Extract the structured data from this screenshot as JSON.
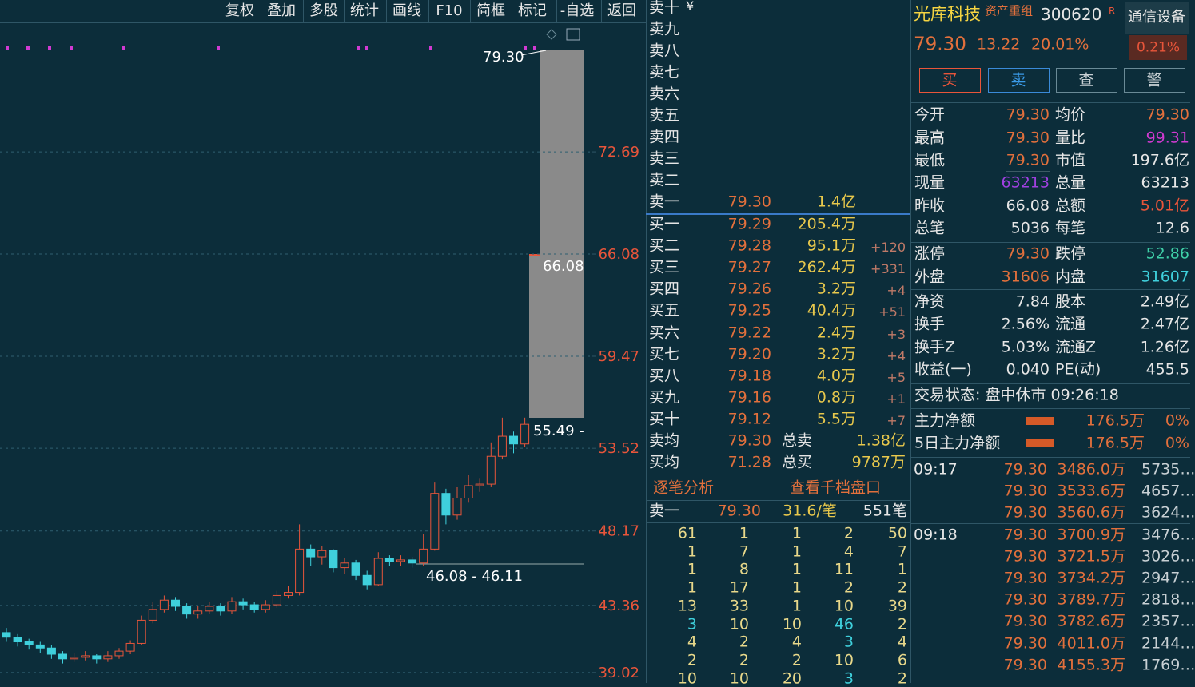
{
  "toolbar": [
    "复权",
    "叠加",
    "多股",
    "统计",
    "画线",
    "F10",
    "简框",
    "标记",
    "-自选",
    "返回"
  ],
  "chart": {
    "ylim": [
      38.34,
      80.96
    ],
    "yticks": [
      72.69,
      66.08,
      59.47,
      53.52,
      48.17,
      43.36,
      39.02
    ],
    "annotations": {
      "limit": "79.30",
      "prev_close": "66.08",
      "level_high": "55.49 -",
      "level_low": "46.08 - 46.11"
    },
    "candles": [
      [
        41.6,
        41.3,
        41.9,
        41.0
      ],
      [
        41.3,
        41.0,
        41.5,
        40.7
      ],
      [
        41.0,
        40.8,
        41.2,
        40.5
      ],
      [
        40.8,
        40.6,
        41.0,
        40.3
      ],
      [
        40.6,
        40.2,
        40.8,
        39.9
      ],
      [
        40.2,
        39.9,
        40.4,
        39.6
      ],
      [
        39.9,
        40.0,
        40.3,
        39.7
      ],
      [
        40.0,
        40.1,
        40.4,
        39.8
      ],
      [
        40.1,
        39.9,
        40.2,
        39.6
      ],
      [
        39.9,
        40.1,
        40.4,
        39.7
      ],
      [
        40.1,
        40.4,
        40.6,
        39.9
      ],
      [
        40.4,
        40.9,
        41.1,
        40.2
      ],
      [
        40.9,
        42.4,
        42.7,
        40.8
      ],
      [
        42.4,
        43.1,
        43.6,
        42.2
      ],
      [
        43.1,
        43.7,
        44.0,
        42.9
      ],
      [
        43.7,
        43.3,
        43.9,
        43.0
      ],
      [
        43.3,
        42.8,
        43.5,
        42.5
      ],
      [
        42.8,
        43.0,
        43.3,
        42.5
      ],
      [
        43.0,
        43.3,
        43.6,
        42.8
      ],
      [
        43.3,
        43.0,
        43.5,
        42.7
      ],
      [
        43.0,
        43.6,
        43.9,
        42.8
      ],
      [
        43.6,
        43.4,
        43.8,
        43.1
      ],
      [
        43.4,
        43.1,
        43.6,
        42.9
      ],
      [
        43.1,
        43.4,
        43.7,
        42.9
      ],
      [
        43.4,
        44.0,
        44.3,
        43.2
      ],
      [
        44.0,
        44.2,
        44.6,
        43.8
      ],
      [
        44.2,
        47.0,
        48.6,
        44.0
      ],
      [
        47.0,
        46.5,
        47.3,
        45.9
      ],
      [
        46.5,
        46.9,
        47.2,
        46.0
      ],
      [
        46.9,
        45.8,
        47.0,
        45.5
      ],
      [
        45.8,
        46.1,
        46.4,
        45.4
      ],
      [
        46.1,
        45.3,
        46.3,
        45.0
      ],
      [
        45.3,
        44.7,
        45.6,
        44.4
      ],
      [
        44.7,
        46.4,
        46.8,
        44.6
      ],
      [
        46.4,
        46.2,
        46.6,
        45.9
      ],
      [
        46.2,
        46.3,
        46.6,
        45.9
      ],
      [
        46.3,
        46.1,
        46.5,
        45.8
      ],
      [
        46.1,
        47.0,
        48.0,
        45.9
      ],
      [
        47.0,
        50.6,
        51.3,
        46.9
      ],
      [
        50.6,
        49.2,
        50.9,
        48.6
      ],
      [
        49.2,
        50.3,
        51.0,
        48.9
      ],
      [
        50.3,
        51.1,
        51.8,
        50.0
      ],
      [
        51.1,
        51.2,
        51.6,
        50.7
      ],
      [
        51.2,
        53.0,
        53.9,
        51.0
      ],
      [
        53.0,
        54.3,
        55.5,
        52.8
      ],
      [
        54.3,
        53.8,
        54.6,
        53.2
      ],
      [
        53.8,
        55.07,
        55.5,
        53.6
      ]
    ],
    "up_color": "#e8553a",
    "down_color": "#3fd0dc"
  },
  "book": {
    "currency": "¥",
    "asks": [
      {
        "label": "卖十"
      },
      {
        "label": "卖九"
      },
      {
        "label": "卖八"
      },
      {
        "label": "卖七"
      },
      {
        "label": "卖六"
      },
      {
        "label": "卖五"
      },
      {
        "label": "卖四"
      },
      {
        "label": "卖三"
      },
      {
        "label": "卖二"
      },
      {
        "label": "卖一",
        "price": "79.30",
        "volume": "1.4亿"
      }
    ],
    "bids": [
      {
        "label": "买一",
        "price": "79.29",
        "volume": "205.4万"
      },
      {
        "label": "买二",
        "price": "79.28",
        "volume": "95.1万",
        "change": "+120"
      },
      {
        "label": "买三",
        "price": "79.27",
        "volume": "262.4万",
        "change": "+331"
      },
      {
        "label": "买四",
        "price": "79.26",
        "volume": "3.2万",
        "change": "+4"
      },
      {
        "label": "买五",
        "price": "79.25",
        "volume": "40.4万",
        "change": "+51"
      },
      {
        "label": "买六",
        "price": "79.22",
        "volume": "2.4万",
        "change": "+3"
      },
      {
        "label": "买七",
        "price": "79.20",
        "volume": "3.2万",
        "change": "+4"
      },
      {
        "label": "买八",
        "price": "79.18",
        "volume": "4.0万",
        "change": "+5"
      },
      {
        "label": "买九",
        "price": "79.16",
        "volume": "0.8万",
        "change": "+1"
      },
      {
        "label": "买十",
        "price": "79.12",
        "volume": "5.5万",
        "change": "+7"
      }
    ],
    "summary": [
      [
        "卖均",
        "79.30",
        "总卖",
        "1.38亿"
      ],
      [
        "买均",
        "71.28",
        "总买",
        "9787万"
      ]
    ],
    "tabs": [
      "逐笔分析",
      "查看千档盘口"
    ],
    "tick_head": [
      "卖一",
      "79.30",
      "31.6/笔",
      "551笔"
    ],
    "grid": [
      [
        61,
        1,
        1,
        2,
        50
      ],
      [
        1,
        7,
        1,
        4,
        7
      ],
      [
        1,
        8,
        1,
        11,
        1
      ],
      [
        1,
        17,
        1,
        2,
        2
      ],
      [
        13,
        33,
        1,
        10,
        39
      ],
      [
        {
          "value": 3,
          "color": "#3fd0dc"
        },
        10,
        10,
        {
          "value": 46,
          "color": "#3fd0dc"
        },
        2
      ],
      [
        4,
        2,
        4,
        {
          "value": 3,
          "color": "#3fd0dc"
        },
        4
      ],
      [
        2,
        2,
        2,
        10,
        6
      ],
      [
        10,
        10,
        20,
        {
          "value": 3,
          "color": "#3fd0dc"
        },
        2
      ]
    ]
  },
  "quote": {
    "name": "光库科技",
    "tag": "资产重组",
    "code": "300620",
    "flag": "R",
    "industry": "通信设备",
    "price": "79.30",
    "change": "13.22",
    "change_pct": "20.01%",
    "industry_pct": "0.21%",
    "buttons": [
      "买",
      "卖",
      "查",
      "警"
    ],
    "rows": [
      [
        "今开",
        "79.30",
        "均价",
        "79.30"
      ],
      [
        "最高",
        "79.30",
        "量比",
        "99.31"
      ],
      [
        "最低",
        "79.30",
        "市值",
        "197.6亿"
      ],
      [
        "现量",
        "63213",
        "总量",
        "63213"
      ],
      [
        "昨收",
        "66.08",
        "总额",
        "5.01亿"
      ],
      [
        "总笔",
        "5036",
        "每笔",
        "12.6"
      ],
      [
        "涨停",
        "79.30",
        "跌停",
        "52.86"
      ],
      [
        "外盘",
        "31606",
        "内盘",
        "31607"
      ],
      [
        "净资",
        "7.84",
        "股本",
        "2.49亿"
      ],
      [
        "换手",
        "2.56%",
        "流通",
        "2.47亿"
      ],
      [
        "换手Z",
        "5.03%",
        "流通Z",
        "1.26亿"
      ],
      [
        "收益(一)",
        "0.040",
        "PE(动)",
        "455.5"
      ]
    ],
    "row_colors": [
      [
        "#e2703c",
        "#e2703c"
      ],
      [
        "#e2703c",
        "#d23ad2"
      ],
      [
        "#e2703c",
        "#e6e6e6"
      ],
      [
        "#a040e0",
        "#e6e6e6"
      ],
      [
        "#e6e6e6",
        "#e8553a"
      ],
      [
        "#e6e6e6",
        "#e6e6e6"
      ],
      [
        "#e2703c",
        "#3fd0a8"
      ],
      [
        "#e2703c",
        "#3fd0dc"
      ],
      [
        "#e6e6e6",
        "#e6e6e6"
      ],
      [
        "#e6e6e6",
        "#e6e6e6"
      ],
      [
        "#e6e6e6",
        "#e6e6e6"
      ],
      [
        "#e6e6e6",
        "#e6e6e6"
      ]
    ],
    "status": "交易状态: 盘中休市 09:26:18",
    "main_flow": [
      [
        "主力净额",
        "176.5万",
        "0%"
      ],
      [
        "5日主力净额",
        "176.5万",
        "0%"
      ]
    ],
    "ticks": [
      [
        "09:17",
        "79.30",
        "3486.0万",
        "5735…"
      ],
      [
        "",
        "79.30",
        "3533.6万",
        "4657…"
      ],
      [
        "",
        "79.30",
        "3560.6万",
        "3624…"
      ],
      [
        "09:18",
        "79.30",
        "3700.9万",
        "3476…"
      ],
      [
        "",
        "79.30",
        "3721.5万",
        "3026…"
      ],
      [
        "",
        "79.30",
        "3734.2万",
        "2947…"
      ],
      [
        "",
        "79.30",
        "3789.7万",
        "2818…"
      ],
      [
        "",
        "79.30",
        "3782.6万",
        "2357…"
      ],
      [
        "",
        "79.30",
        "4011.0万",
        "2144…"
      ],
      [
        "",
        "79.30",
        "4155.3万",
        "1769…"
      ]
    ]
  }
}
